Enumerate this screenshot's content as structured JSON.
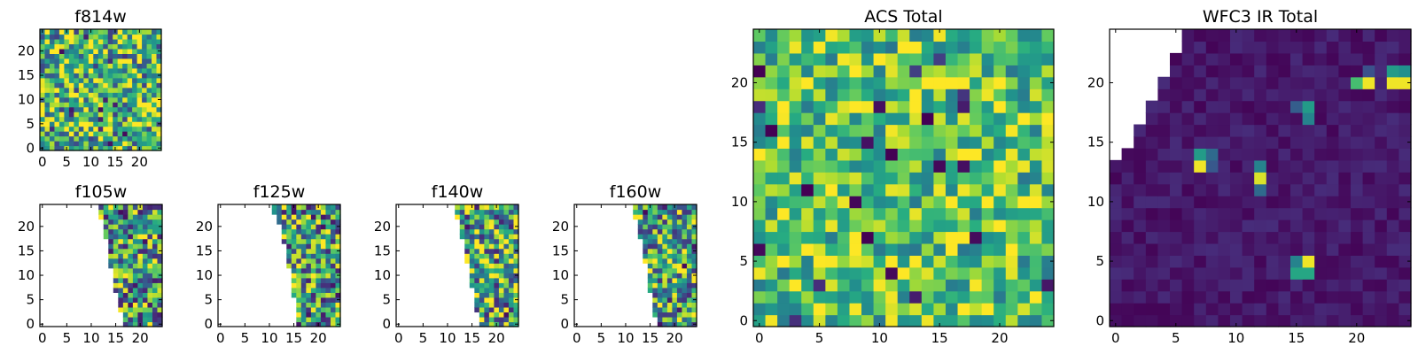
{
  "figure": {
    "description_colormap": "viridis",
    "colors": {
      "nan": "#ffffff",
      "frame": "#000000"
    }
  },
  "chart_data": [
    {
      "id": "f814w",
      "type": "heatmap",
      "title": "f814w",
      "xlabel": "",
      "ylabel": "",
      "xlim": [
        -0.5,
        24.5
      ],
      "ylim": [
        -0.5,
        24.5
      ],
      "xticks": [
        0,
        5,
        10,
        15,
        20
      ],
      "yticks": [
        0,
        5,
        10,
        15,
        20
      ],
      "grid_size": [
        25,
        25
      ],
      "value_range": [
        0,
        1
      ],
      "nan_mask": "none",
      "pattern": "noise",
      "base_value": 0.65,
      "spread": 0.45,
      "seed": 11,
      "hotspots": []
    },
    {
      "id": "f105w",
      "type": "heatmap",
      "title": "f105w",
      "xlabel": "",
      "ylabel": "",
      "xlim": [
        -0.5,
        24.5
      ],
      "ylim": [
        -0.5,
        24.5
      ],
      "xticks": [
        0,
        5,
        10,
        15,
        20
      ],
      "yticks": [
        0,
        5,
        10,
        15,
        20
      ],
      "grid_size": [
        25,
        25
      ],
      "value_range": [
        0,
        1
      ],
      "nan_mask": "left_edge",
      "edge_columns_bottom_to_top": [
        17,
        17,
        17,
        16,
        16,
        16,
        16,
        15,
        15,
        15,
        15,
        15,
        14,
        14,
        14,
        14,
        14,
        14,
        13,
        13,
        13,
        13,
        12,
        12,
        12
      ],
      "pattern": "noise",
      "base_value": 0.55,
      "spread": 0.5,
      "seed": 23,
      "hotspots": []
    },
    {
      "id": "f125w",
      "type": "heatmap",
      "title": "f125w",
      "xlabel": "",
      "ylabel": "",
      "xlim": [
        -0.5,
        24.5
      ],
      "ylim": [
        -0.5,
        24.5
      ],
      "xticks": [
        0,
        5,
        10,
        15,
        20
      ],
      "yticks": [
        0,
        5,
        10,
        15,
        20
      ],
      "grid_size": [
        25,
        25
      ],
      "value_range": [
        0,
        1
      ],
      "nan_mask": "left_edge",
      "edge_columns_bottom_to_top": [
        16,
        16,
        16,
        16,
        16,
        16,
        15,
        15,
        15,
        15,
        15,
        15,
        14,
        14,
        14,
        14,
        14,
        13,
        13,
        13,
        13,
        12,
        12,
        11,
        11
      ],
      "pattern": "noise",
      "base_value": 0.55,
      "spread": 0.5,
      "seed": 37,
      "hotspots": []
    },
    {
      "id": "f140w",
      "type": "heatmap",
      "title": "f140w",
      "xlabel": "",
      "ylabel": "",
      "xlim": [
        -0.5,
        24.5
      ],
      "ylim": [
        -0.5,
        24.5
      ],
      "xticks": [
        0,
        5,
        10,
        15,
        20
      ],
      "yticks": [
        0,
        5,
        10,
        15,
        20
      ],
      "grid_size": [
        25,
        25
      ],
      "value_range": [
        0,
        1
      ],
      "nan_mask": "left_edge",
      "edge_columns_bottom_to_top": [
        17,
        17,
        17,
        16,
        16,
        16,
        16,
        16,
        15,
        15,
        15,
        15,
        15,
        14,
        14,
        14,
        14,
        14,
        13,
        13,
        13,
        13,
        12,
        12,
        12
      ],
      "pattern": "noise",
      "base_value": 0.6,
      "spread": 0.5,
      "seed": 51,
      "hotspots": []
    },
    {
      "id": "f160w",
      "type": "heatmap",
      "title": "f160w",
      "xlabel": "",
      "ylabel": "",
      "xlim": [
        -0.5,
        24.5
      ],
      "ylim": [
        -0.5,
        24.5
      ],
      "xticks": [
        0,
        5,
        10,
        15,
        20
      ],
      "yticks": [
        0,
        5,
        10,
        15,
        20
      ],
      "grid_size": [
        25,
        25
      ],
      "value_range": [
        0,
        1
      ],
      "nan_mask": "left_edge",
      "edge_columns_bottom_to_top": [
        17,
        17,
        16,
        16,
        16,
        16,
        16,
        15,
        15,
        15,
        15,
        15,
        15,
        14,
        14,
        14,
        14,
        14,
        13,
        13,
        13,
        13,
        12,
        12,
        12
      ],
      "pattern": "noise",
      "base_value": 0.6,
      "spread": 0.45,
      "seed": 67,
      "hotspots": []
    },
    {
      "id": "acs_total",
      "type": "heatmap",
      "title": "ACS Total",
      "xlabel": "",
      "ylabel": "",
      "xlim": [
        -0.5,
        24.5
      ],
      "ylim": [
        -0.5,
        24.5
      ],
      "xticks": [
        0,
        5,
        10,
        15,
        20
      ],
      "yticks": [
        0,
        5,
        10,
        15,
        20
      ],
      "grid_size": [
        25,
        25
      ],
      "value_range": [
        0,
        1
      ],
      "nan_mask": "none",
      "pattern": "noise",
      "base_value": 0.72,
      "spread": 0.32,
      "seed": 79,
      "hotspots": [
        {
          "x": 4,
          "y": 11,
          "value": 0.0
        },
        {
          "x": 9,
          "y": 7,
          "value": 0.0
        },
        {
          "x": 11,
          "y": 14,
          "value": 0.0
        },
        {
          "x": 15,
          "y": 13,
          "value": 0.02
        },
        {
          "x": 11,
          "y": 4,
          "value": 0.02
        },
        {
          "x": 14,
          "y": 17,
          "value": 0.0
        },
        {
          "x": 1,
          "y": 16,
          "value": 0.0
        },
        {
          "x": 9,
          "y": 15,
          "value": 0.05
        }
      ]
    },
    {
      "id": "wfc3_ir_total",
      "type": "heatmap",
      "title": "WFC3 IR Total",
      "xlabel": "",
      "ylabel": "",
      "xlim": [
        -0.5,
        24.5
      ],
      "ylim": [
        -0.5,
        24.5
      ],
      "xticks": [
        0,
        5,
        10,
        15,
        20
      ],
      "yticks": [
        0,
        5,
        10,
        15,
        20
      ],
      "grid_size": [
        25,
        25
      ],
      "value_range": [
        0,
        1
      ],
      "nan_mask": "top_left_corner",
      "corner_nan_columns_top_to_bottom": [
        5,
        5,
        4,
        4,
        3,
        3,
        2,
        2,
        1,
        1,
        0
      ],
      "pattern": "background",
      "base_value": 0.07,
      "spread": 0.06,
      "seed": 97,
      "hotspots": [
        {
          "x": 7,
          "y": 14,
          "value": 0.55
        },
        {
          "x": 7,
          "y": 13,
          "value": 0.98
        },
        {
          "x": 8,
          "y": 14,
          "value": 0.35
        },
        {
          "x": 8,
          "y": 13,
          "value": 0.28
        },
        {
          "x": 12,
          "y": 13,
          "value": 0.45
        },
        {
          "x": 12,
          "y": 12,
          "value": 0.95
        },
        {
          "x": 12,
          "y": 11,
          "value": 0.35
        },
        {
          "x": 16,
          "y": 18,
          "value": 0.55
        },
        {
          "x": 16,
          "y": 17,
          "value": 0.45
        },
        {
          "x": 15,
          "y": 18,
          "value": 0.3
        },
        {
          "x": 16,
          "y": 5,
          "value": 0.98
        },
        {
          "x": 15,
          "y": 5,
          "value": 0.45
        },
        {
          "x": 15,
          "y": 4,
          "value": 0.6
        },
        {
          "x": 16,
          "y": 4,
          "value": 0.6
        },
        {
          "x": 20,
          "y": 20,
          "value": 0.7
        },
        {
          "x": 21,
          "y": 20,
          "value": 0.98
        },
        {
          "x": 23,
          "y": 21,
          "value": 0.55
        },
        {
          "x": 23,
          "y": 20,
          "value": 0.98
        },
        {
          "x": 24,
          "y": 20,
          "value": 0.98
        },
        {
          "x": 24,
          "y": 21,
          "value": 0.5
        },
        {
          "x": 21,
          "y": 21,
          "value": 0.25
        }
      ]
    }
  ]
}
